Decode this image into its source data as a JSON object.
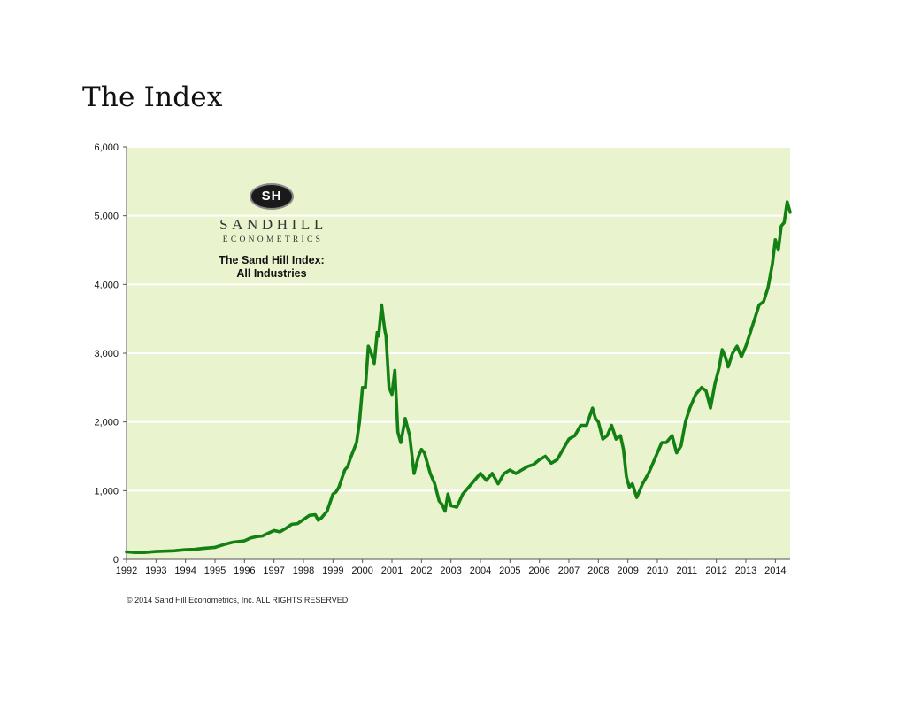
{
  "page": {
    "title": "The Index"
  },
  "logo": {
    "badge": "SH",
    "name": "SANDHILL",
    "sub": "ECONOMETRICS"
  },
  "footer": {
    "copyright": "© 2014 Sand Hill Econometrics, Inc. ALL RIGHTS RESERVED"
  },
  "colors": {
    "plot_bg": "#e9f3cd",
    "line": "#138013",
    "grid": "#ffffff",
    "axis": "#555555"
  },
  "chart_data": {
    "type": "line",
    "title": "The Sand Hill Index:",
    "subtitle": "All Industries",
    "xlabel": "",
    "ylabel": "",
    "xlim": [
      1992,
      2014.5
    ],
    "ylim": [
      0,
      6000
    ],
    "grid": true,
    "y_ticks": [
      0,
      1000,
      2000,
      3000,
      4000,
      5000,
      6000
    ],
    "y_tick_labels": [
      "0",
      "1,000",
      "2,000",
      "3,000",
      "4,000",
      "5,000",
      "6,000"
    ],
    "x_ticks": [
      1992,
      1993,
      1994,
      1995,
      1996,
      1997,
      1998,
      1999,
      2000,
      2001,
      2002,
      2003,
      2004,
      2005,
      2006,
      2007,
      2008,
      2009,
      2010,
      2011,
      2012,
      2013,
      2014
    ],
    "x_tick_labels": [
      "1992",
      "1993",
      "1994",
      "1995",
      "1996",
      "1997",
      "1998",
      "1999",
      "2000",
      "2001",
      "2002",
      "2003",
      "2004",
      "2005",
      "2006",
      "2007",
      "2008",
      "2009",
      "2010",
      "2011",
      "2012",
      "2013",
      "2014"
    ],
    "series": [
      {
        "name": "The Sand Hill Index: All Industries",
        "x": [
          1992.0,
          1992.3,
          1992.6,
          1993.0,
          1993.3,
          1993.6,
          1994.0,
          1994.3,
          1994.6,
          1995.0,
          1995.3,
          1995.6,
          1996.0,
          1996.2,
          1996.4,
          1996.6,
          1996.8,
          1997.0,
          1997.2,
          1997.4,
          1997.6,
          1997.8,
          1998.0,
          1998.2,
          1998.4,
          1998.5,
          1998.6,
          1998.8,
          1999.0,
          1999.1,
          1999.2,
          1999.4,
          1999.5,
          1999.6,
          1999.8,
          1999.9,
          2000.0,
          2000.1,
          2000.2,
          2000.3,
          2000.4,
          2000.5,
          2000.55,
          2000.65,
          2000.75,
          2000.8,
          2000.9,
          2001.0,
          2001.1,
          2001.2,
          2001.3,
          2001.45,
          2001.6,
          2001.75,
          2001.9,
          2002.0,
          2002.1,
          2002.2,
          2002.3,
          2002.45,
          2002.6,
          2002.7,
          2002.8,
          2002.9,
          2003.0,
          2003.2,
          2003.4,
          2003.6,
          2003.8,
          2004.0,
          2004.2,
          2004.4,
          2004.6,
          2004.8,
          2005.0,
          2005.2,
          2005.4,
          2005.6,
          2005.8,
          2006.0,
          2006.2,
          2006.4,
          2006.6,
          2006.8,
          2007.0,
          2007.2,
          2007.4,
          2007.6,
          2007.8,
          2007.9,
          2008.0,
          2008.15,
          2008.3,
          2008.45,
          2008.6,
          2008.75,
          2008.85,
          2008.95,
          2009.05,
          2009.15,
          2009.3,
          2009.5,
          2009.7,
          2009.9,
          2010.0,
          2010.15,
          2010.3,
          2010.5,
          2010.65,
          2010.8,
          2010.95,
          2011.1,
          2011.3,
          2011.5,
          2011.65,
          2011.8,
          2011.95,
          2012.1,
          2012.2,
          2012.3,
          2012.4,
          2012.55,
          2012.7,
          2012.85,
          2013.0,
          2013.15,
          2013.3,
          2013.45,
          2013.6,
          2013.75,
          2013.9,
          2014.0,
          2014.1,
          2014.2,
          2014.3,
          2014.4,
          2014.5
        ],
        "y": [
          110,
          100,
          100,
          115,
          120,
          125,
          140,
          145,
          160,
          175,
          215,
          250,
          270,
          310,
          330,
          340,
          380,
          420,
          400,
          450,
          510,
          520,
          580,
          640,
          650,
          570,
          600,
          700,
          950,
          980,
          1050,
          1300,
          1350,
          1480,
          1700,
          2000,
          2500,
          2500,
          3100,
          3000,
          2850,
          3300,
          3250,
          3700,
          3350,
          3250,
          2500,
          2400,
          2750,
          1850,
          1700,
          2050,
          1800,
          1250,
          1500,
          1600,
          1550,
          1400,
          1250,
          1100,
          850,
          800,
          700,
          950,
          780,
          760,
          950,
          1050,
          1150,
          1250,
          1150,
          1250,
          1100,
          1250,
          1300,
          1250,
          1300,
          1350,
          1380,
          1450,
          1500,
          1400,
          1450,
          1600,
          1750,
          1800,
          1950,
          1950,
          2200,
          2050,
          2000,
          1750,
          1800,
          1950,
          1750,
          1800,
          1600,
          1200,
          1050,
          1100,
          900,
          1100,
          1250,
          1450,
          1550,
          1700,
          1700,
          1800,
          1550,
          1650,
          2000,
          2200,
          2400,
          2500,
          2450,
          2200,
          2550,
          2800,
          3050,
          2950,
          2800,
          3000,
          3100,
          2950,
          3100,
          3300,
          3500,
          3700,
          3750,
          3950,
          4300,
          4650,
          4500,
          4850,
          4900,
          5200,
          5050
        ]
      }
    ]
  }
}
